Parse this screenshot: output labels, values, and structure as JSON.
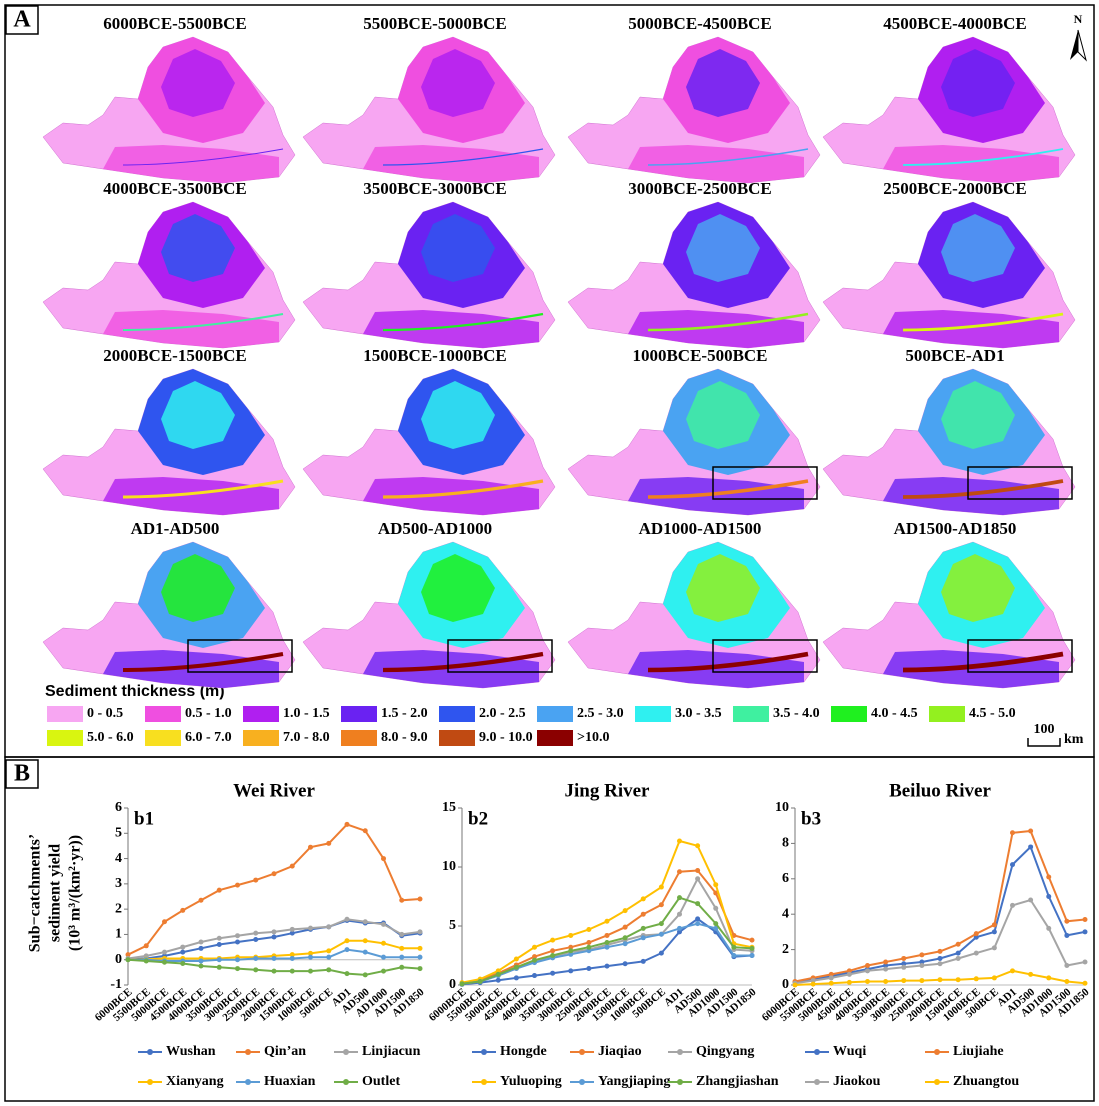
{
  "panel_a": {
    "label": "A",
    "north": "N",
    "maps": [
      "6000BCE-5500BCE",
      "5500BCE-5000BCE",
      "5000BCE-4500BCE",
      "4500BCE-4000BCE",
      "4000BCE-3500BCE",
      "3500BCE-3000BCE",
      "3000BCE-2500BCE",
      "2500BCE-2000BCE",
      "2000BCE-1500BCE",
      "1500BCE-1000BCE",
      "1000BCE-500BCE",
      "500BCE-AD1",
      "AD1-AD500",
      "AD500-AD1000",
      "AD1000-AD1500",
      "AD1500-AD1850"
    ],
    "legend_title": "Sediment thickness (m)",
    "legend": [
      {
        "label": "0 - 0.5",
        "color": "#f7a6f2"
      },
      {
        "label": "0.5 - 1.0",
        "color": "#ef4fe0"
      },
      {
        "label": "1.0 - 1.5",
        "color": "#b01ff0"
      },
      {
        "label": "1.5 - 2.0",
        "color": "#6a22f2"
      },
      {
        "label": "2.0 - 2.5",
        "color": "#2f55ef"
      },
      {
        "label": "2.5 - 3.0",
        "color": "#4aa3f2"
      },
      {
        "label": "3.0 - 3.5",
        "color": "#2ff0f0"
      },
      {
        "label": "3.5 - 4.0",
        "color": "#3ff0a0"
      },
      {
        "label": "4.0 - 4.5",
        "color": "#1ff01f"
      },
      {
        "label": "4.5 - 5.0",
        "color": "#93f01f"
      },
      {
        "label": "5.0 - 6.0",
        "color": "#d9f510"
      },
      {
        "label": "6.0 - 7.0",
        "color": "#f8df1f"
      },
      {
        "label": "7.0 - 8.0",
        "color": "#f8b01f"
      },
      {
        "label": "8.0 - 9.0",
        "color": "#ef7f1f"
      },
      {
        "label": "9.0 - 10.0",
        "color": "#c04a12"
      },
      {
        "label": ">10.0",
        "color": "#8b0000"
      }
    ],
    "scale": "100",
    "scale_unit": "km"
  },
  "panel_b": {
    "label": "B",
    "y_label": [
      "Sub−catchments’",
      "sediment yield",
      "(10³ m³/(km²·yr))"
    ]
  },
  "chart_data": [
    {
      "type": "line",
      "title": "Wei River",
      "label": "b1",
      "categories": [
        "6000BCE",
        "5500BCE",
        "5000BCE",
        "4500BCE",
        "4000BCE",
        "3500BCE",
        "3000BCE",
        "2500BCE",
        "2000BCE",
        "1500BCE",
        "1000BCE",
        "500BCE",
        "AD1",
        "AD500",
        "AD1000",
        "AD1500",
        "AD1850"
      ],
      "ylim": [
        -1,
        6
      ],
      "yticks": [
        -1,
        0,
        1,
        2,
        3,
        4,
        5,
        6
      ],
      "series": [
        {
          "name": "Wushan",
          "color": "#4472c4",
          "values": [
            0.02,
            0.05,
            0.15,
            0.3,
            0.45,
            0.6,
            0.7,
            0.8,
            0.9,
            1.05,
            1.2,
            1.3,
            1.55,
            1.45,
            1.45,
            0.95,
            1.05
          ]
        },
        {
          "name": "Qin’an",
          "color": "#ed7d31",
          "values": [
            0.2,
            0.55,
            1.5,
            1.95,
            2.35,
            2.75,
            2.95,
            3.15,
            3.4,
            3.7,
            4.45,
            4.6,
            5.35,
            5.1,
            4.0,
            2.35,
            2.4
          ]
        },
        {
          "name": "Linjiacun",
          "color": "#a5a5a5",
          "values": [
            0.05,
            0.15,
            0.3,
            0.5,
            0.7,
            0.85,
            0.95,
            1.05,
            1.1,
            1.2,
            1.25,
            1.3,
            1.6,
            1.5,
            1.4,
            1.0,
            1.1
          ]
        },
        {
          "name": "Xianyang",
          "color": "#ffc000",
          "values": [
            0.0,
            0.02,
            0.05,
            0.05,
            0.05,
            0.05,
            0.1,
            0.1,
            0.15,
            0.2,
            0.25,
            0.35,
            0.75,
            0.75,
            0.65,
            0.45,
            0.45
          ]
        },
        {
          "name": "Huaxian",
          "color": "#5b9bd5",
          "values": [
            0.0,
            0.0,
            -0.05,
            -0.05,
            -0.05,
            0.0,
            0.0,
            0.05,
            0.05,
            0.05,
            0.1,
            0.1,
            0.4,
            0.3,
            0.1,
            0.1,
            0.1
          ]
        },
        {
          "name": "Outlet",
          "color": "#70ad47",
          "values": [
            0.0,
            -0.05,
            -0.1,
            -0.15,
            -0.25,
            -0.3,
            -0.35,
            -0.4,
            -0.45,
            -0.45,
            -0.45,
            -0.4,
            -0.55,
            -0.6,
            -0.45,
            -0.3,
            -0.35
          ]
        }
      ]
    },
    {
      "type": "line",
      "title": "Jing River",
      "label": "b2",
      "categories": [
        "6000BCE",
        "5500BCE",
        "5000BCE",
        "4500BCE",
        "4000BCE",
        "3500BCE",
        "3000BCE",
        "2500BCE",
        "2000BCE",
        "1500BCE",
        "1000BCE",
        "500BCE",
        "AD1",
        "AD500",
        "AD1000",
        "AD1500",
        "AD1850"
      ],
      "ylim": [
        0,
        15
      ],
      "yticks": [
        0,
        5,
        10,
        15
      ],
      "series": [
        {
          "name": "Hongde",
          "color": "#4472c4",
          "values": [
            0.05,
            0.2,
            0.4,
            0.6,
            0.8,
            1.0,
            1.2,
            1.4,
            1.6,
            1.8,
            2.0,
            2.7,
            4.5,
            5.6,
            4.5,
            2.4,
            2.5
          ]
        },
        {
          "name": "Jiaqiao",
          "color": "#ed7d31",
          "values": [
            0.1,
            0.4,
            1.0,
            1.7,
            2.4,
            2.9,
            3.2,
            3.6,
            4.2,
            4.9,
            6.0,
            6.8,
            9.6,
            9.7,
            7.8,
            4.2,
            3.8
          ]
        },
        {
          "name": "Qingyang",
          "color": "#a5a5a5",
          "values": [
            0.1,
            0.3,
            0.8,
            1.4,
            2.0,
            2.4,
            2.8,
            3.0,
            3.4,
            3.8,
            4.2,
            4.3,
            6.0,
            9.0,
            6.5,
            3.0,
            2.9
          ]
        },
        {
          "name": "Yuluoping",
          "color": "#ffc000",
          "values": [
            0.2,
            0.5,
            1.2,
            2.2,
            3.2,
            3.8,
            4.2,
            4.7,
            5.4,
            6.3,
            7.3,
            8.3,
            12.2,
            11.8,
            8.5,
            3.5,
            3.2
          ]
        },
        {
          "name": "Yangjiaping",
          "color": "#5b9bd5",
          "values": [
            0.1,
            0.3,
            0.8,
            1.4,
            1.9,
            2.3,
            2.6,
            2.9,
            3.2,
            3.5,
            4.0,
            4.3,
            4.8,
            5.2,
            4.8,
            2.5,
            2.5
          ]
        },
        {
          "name": "Zhangjiashan",
          "color": "#70ad47",
          "values": [
            0.1,
            0.3,
            0.9,
            1.5,
            2.1,
            2.5,
            2.9,
            3.2,
            3.6,
            4.0,
            4.8,
            5.2,
            7.4,
            6.9,
            5.2,
            3.2,
            3.1
          ]
        }
      ]
    },
    {
      "type": "line",
      "title": "Beiluo River",
      "label": "b3",
      "categories": [
        "6000BCE",
        "5500BCE",
        "5000BCE",
        "4500BCE",
        "4000BCE",
        "3500BCE",
        "3000BCE",
        "2500BCE",
        "2000BCE",
        "1500BCE",
        "1000BCE",
        "500BCE",
        "AD1",
        "AD500",
        "AD1000",
        "AD1500",
        "AD1850"
      ],
      "ylim": [
        0,
        10
      ],
      "yticks": [
        0,
        2,
        4,
        6,
        8,
        10
      ],
      "series": [
        {
          "name": "Wuqi",
          "color": "#4472c4",
          "values": [
            0.15,
            0.3,
            0.5,
            0.7,
            0.9,
            1.1,
            1.2,
            1.3,
            1.5,
            1.8,
            2.7,
            3.0,
            6.8,
            7.8,
            5.0,
            2.8,
            3.0
          ]
        },
        {
          "name": "Liujiahe",
          "color": "#ed7d31",
          "values": [
            0.2,
            0.4,
            0.6,
            0.8,
            1.1,
            1.3,
            1.5,
            1.7,
            1.9,
            2.3,
            2.9,
            3.4,
            8.6,
            8.7,
            6.1,
            3.6,
            3.7
          ]
        },
        {
          "name": "Jiaokou",
          "color": "#a5a5a5",
          "values": [
            0.1,
            0.25,
            0.4,
            0.6,
            0.8,
            0.9,
            1.0,
            1.1,
            1.2,
            1.5,
            1.8,
            2.1,
            4.5,
            4.8,
            3.2,
            1.1,
            1.3
          ]
        },
        {
          "name": "Zhuangtou",
          "color": "#ffc000",
          "values": [
            0.0,
            0.05,
            0.1,
            0.15,
            0.2,
            0.2,
            0.25,
            0.25,
            0.3,
            0.3,
            0.35,
            0.4,
            0.8,
            0.6,
            0.4,
            0.2,
            0.1
          ]
        }
      ]
    }
  ]
}
